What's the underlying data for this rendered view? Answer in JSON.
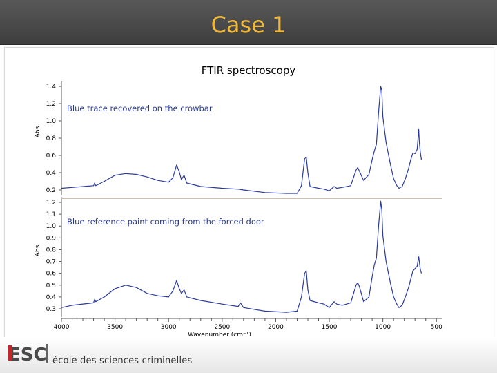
{
  "slide": {
    "title": "Case 1"
  },
  "footer": {
    "logo_text": "ESC",
    "institution": "école des sciences criminelles"
  },
  "colors": {
    "title_text": "#f0b838",
    "title_bar": "#474747",
    "trace": "#2a3a9c",
    "logo_red": "#c0282b",
    "logo_gray": "#4a4a4a",
    "panel_separator": "#c8beb4"
  },
  "chart_data": [
    {
      "type": "line",
      "title": "FTIR spectroscopy",
      "annotation": "Blue trace recovered on the crowbar",
      "ylabel": "Abs",
      "ylim": [
        0.2,
        1.45
      ],
      "yticks": [
        1.4,
        1.2,
        1.0,
        0.8,
        0.6,
        0.4,
        0.2
      ],
      "xlim": [
        4000,
        450
      ],
      "series": [
        {
          "points": [
            [
              4000,
              0.22
            ],
            [
              3900,
              0.23
            ],
            [
              3700,
              0.25
            ],
            [
              3690,
              0.28
            ],
            [
              3680,
              0.25
            ],
            [
              3600,
              0.3
            ],
            [
              3500,
              0.37
            ],
            [
              3400,
              0.39
            ],
            [
              3300,
              0.38
            ],
            [
              3200,
              0.35
            ],
            [
              3100,
              0.31
            ],
            [
              3000,
              0.29
            ],
            [
              2960,
              0.34
            ],
            [
              2925,
              0.49
            ],
            [
              2900,
              0.41
            ],
            [
              2880,
              0.32
            ],
            [
              2855,
              0.37
            ],
            [
              2830,
              0.28
            ],
            [
              2700,
              0.24
            ],
            [
              2500,
              0.22
            ],
            [
              2350,
              0.21
            ],
            [
              2300,
              0.2
            ],
            [
              2100,
              0.17
            ],
            [
              1900,
              0.16
            ],
            [
              1800,
              0.16
            ],
            [
              1760,
              0.25
            ],
            [
              1730,
              0.56
            ],
            [
              1715,
              0.58
            ],
            [
              1700,
              0.4
            ],
            [
              1680,
              0.24
            ],
            [
              1600,
              0.22
            ],
            [
              1550,
              0.21
            ],
            [
              1500,
              0.19
            ],
            [
              1455,
              0.24
            ],
            [
              1430,
              0.22
            ],
            [
              1380,
              0.23
            ],
            [
              1300,
              0.25
            ],
            [
              1250,
              0.43
            ],
            [
              1235,
              0.46
            ],
            [
              1220,
              0.42
            ],
            [
              1180,
              0.31
            ],
            [
              1130,
              0.38
            ],
            [
              1100,
              0.55
            ],
            [
              1080,
              0.65
            ],
            [
              1060,
              0.73
            ],
            [
              1040,
              1.1
            ],
            [
              1020,
              1.4
            ],
            [
              1010,
              1.35
            ],
            [
              1000,
              1.05
            ],
            [
              970,
              0.75
            ],
            [
              930,
              0.5
            ],
            [
              900,
              0.33
            ],
            [
              870,
              0.25
            ],
            [
              850,
              0.22
            ],
            [
              820,
              0.24
            ],
            [
              790,
              0.33
            ],
            [
              760,
              0.45
            ],
            [
              740,
              0.55
            ],
            [
              720,
              0.63
            ],
            [
              700,
              0.62
            ],
            [
              680,
              0.67
            ],
            [
              665,
              0.9
            ],
            [
              660,
              0.76
            ],
            [
              650,
              0.63
            ],
            [
              640,
              0.55
            ]
          ]
        }
      ]
    },
    {
      "type": "line",
      "annotation": "Blue reference paint coming from the forced door",
      "xlabel": "Wavenumber (cm⁻¹)",
      "ylabel": "Abs",
      "ylim": [
        0.25,
        1.22
      ],
      "yticks": [
        1.2,
        1.1,
        1.0,
        0.9,
        0.8,
        0.7,
        0.6,
        0.5,
        0.4,
        0.3
      ],
      "xlim": [
        4000,
        450
      ],
      "xticks": [
        4000,
        3500,
        3000,
        2500,
        2000,
        1500,
        1000,
        500
      ],
      "series": [
        {
          "points": [
            [
              4000,
              0.31
            ],
            [
              3900,
              0.33
            ],
            [
              3700,
              0.35
            ],
            [
              3690,
              0.38
            ],
            [
              3680,
              0.36
            ],
            [
              3600,
              0.4
            ],
            [
              3500,
              0.47
            ],
            [
              3400,
              0.5
            ],
            [
              3300,
              0.48
            ],
            [
              3200,
              0.43
            ],
            [
              3100,
              0.41
            ],
            [
              3000,
              0.4
            ],
            [
              2960,
              0.45
            ],
            [
              2925,
              0.54
            ],
            [
              2900,
              0.47
            ],
            [
              2880,
              0.43
            ],
            [
              2855,
              0.46
            ],
            [
              2830,
              0.4
            ],
            [
              2700,
              0.37
            ],
            [
              2500,
              0.34
            ],
            [
              2350,
              0.32
            ],
            [
              2330,
              0.35
            ],
            [
              2300,
              0.31
            ],
            [
              2100,
              0.28
            ],
            [
              1900,
              0.27
            ],
            [
              1800,
              0.28
            ],
            [
              1760,
              0.4
            ],
            [
              1730,
              0.6
            ],
            [
              1715,
              0.62
            ],
            [
              1700,
              0.46
            ],
            [
              1680,
              0.37
            ],
            [
              1600,
              0.35
            ],
            [
              1550,
              0.34
            ],
            [
              1500,
              0.31
            ],
            [
              1455,
              0.36
            ],
            [
              1430,
              0.34
            ],
            [
              1380,
              0.33
            ],
            [
              1300,
              0.35
            ],
            [
              1250,
              0.5
            ],
            [
              1235,
              0.52
            ],
            [
              1220,
              0.49
            ],
            [
              1180,
              0.36
            ],
            [
              1130,
              0.4
            ],
            [
              1100,
              0.57
            ],
            [
              1080,
              0.67
            ],
            [
              1060,
              0.73
            ],
            [
              1040,
              1.0
            ],
            [
              1020,
              1.21
            ],
            [
              1010,
              1.14
            ],
            [
              1000,
              0.92
            ],
            [
              970,
              0.7
            ],
            [
              930,
              0.52
            ],
            [
              900,
              0.4
            ],
            [
              870,
              0.34
            ],
            [
              850,
              0.31
            ],
            [
              820,
              0.33
            ],
            [
              790,
              0.4
            ],
            [
              760,
              0.48
            ],
            [
              740,
              0.55
            ],
            [
              720,
              0.62
            ],
            [
              700,
              0.64
            ],
            [
              680,
              0.66
            ],
            [
              665,
              0.74
            ],
            [
              660,
              0.7
            ],
            [
              650,
              0.63
            ],
            [
              640,
              0.6
            ]
          ]
        }
      ]
    }
  ]
}
